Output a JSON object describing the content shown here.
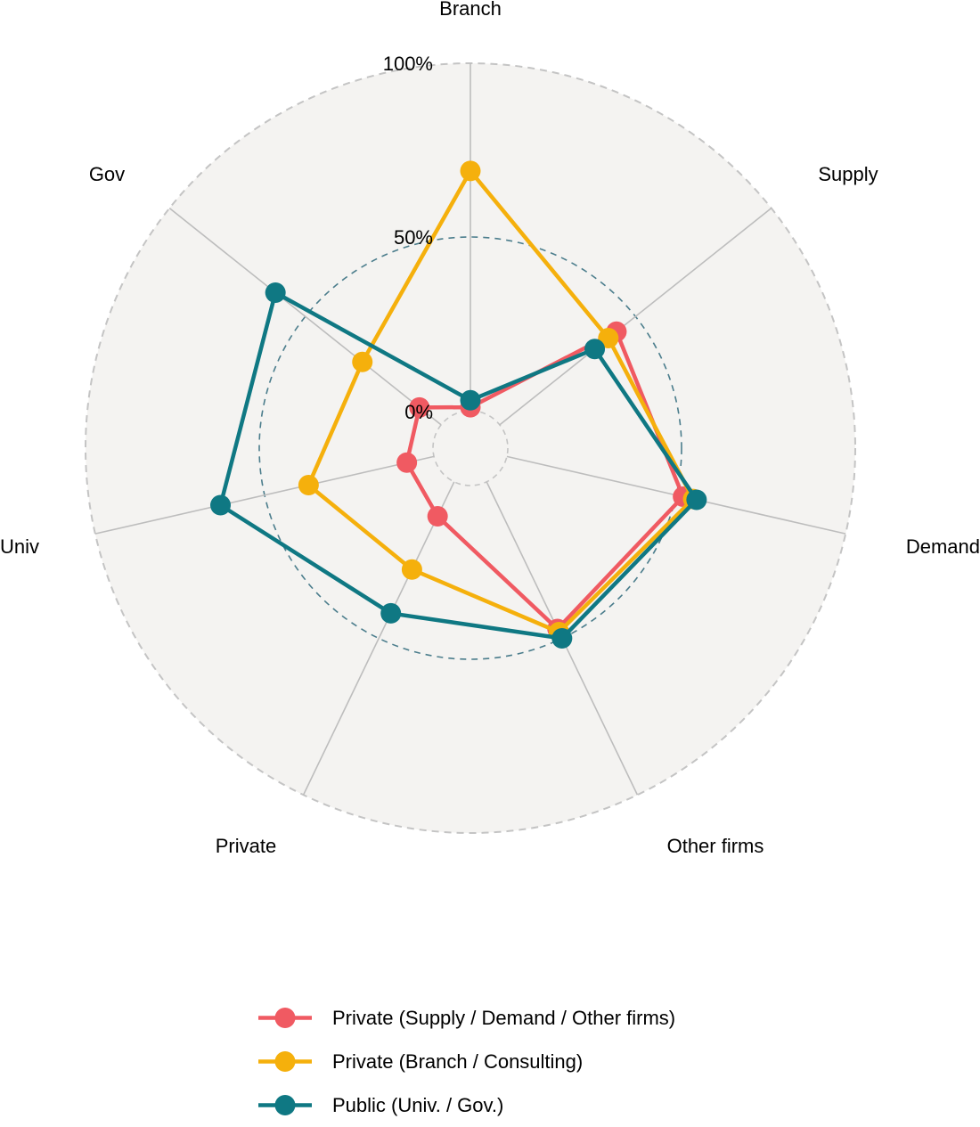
{
  "chart_data": {
    "type": "radar",
    "axes": [
      "Branch",
      "Supply",
      "Demand",
      "Other firms",
      "Private",
      "Univ",
      "Gov"
    ],
    "rings": [
      {
        "value": 0,
        "label": "0%"
      },
      {
        "value": 50,
        "label": "50%"
      },
      {
        "value": 100,
        "label": "100%"
      }
    ],
    "range": [
      0,
      100
    ],
    "series": [
      {
        "name": "Private (Supply / Demand / Other firms)",
        "color": "#f05a62",
        "values": [
          1,
          43,
          52,
          47,
          11,
          8,
          8
        ]
      },
      {
        "name": "Private (Branch / Consulting)",
        "color": "#f5b00c",
        "values": [
          69,
          40,
          55,
          48,
          28,
          37,
          29
        ]
      },
      {
        "name": "Public (Univ. / Gov.)",
        "color": "#0f7883",
        "values": [
          3,
          35,
          56,
          50,
          42,
          63,
          61
        ]
      }
    ],
    "legend_position": "bottom",
    "colors": {
      "panel": "#f4f3f1",
      "grid_spoke": "#bdbdbd",
      "outer_ring": "#c4c4c4",
      "mid_ring": "#4b7d8c"
    }
  }
}
